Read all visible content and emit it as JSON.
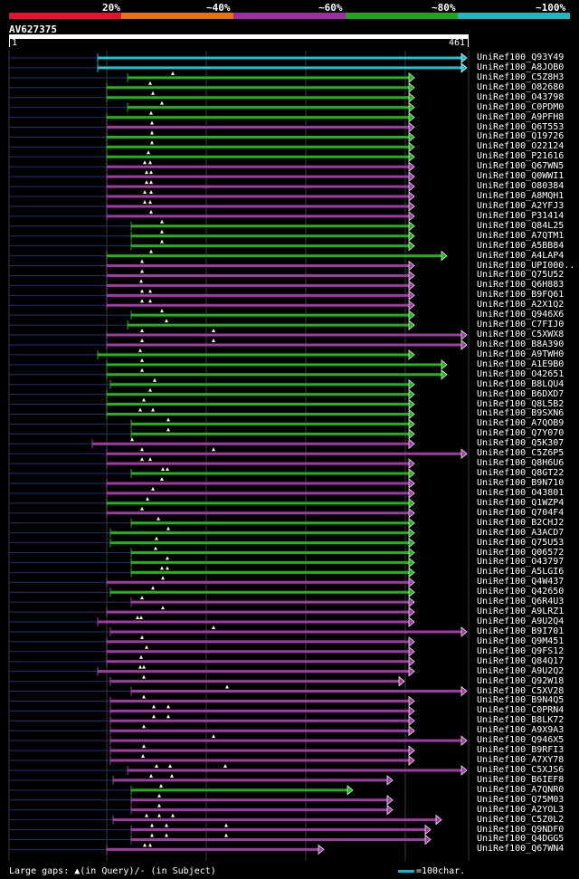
{
  "legend": [
    {
      "label": "20%",
      "color": "#e8112d"
    },
    {
      "label": "~40%",
      "color": "#e87411"
    },
    {
      "label": "~60%",
      "color": "#9b2ea0"
    },
    {
      "label": "~80%",
      "color": "#22a31f"
    },
    {
      "label": "~100%",
      "color": "#1fb8c2"
    }
  ],
  "query": {
    "name": "AV627375",
    "start": "1",
    "end": "461"
  },
  "footer": {
    "left": "Large gaps: ▲(in Query)/- (in Subject)",
    "scale": "=100char."
  },
  "rows": [
    {
      "label": "UniRef100_Q93Y49",
      "color": "cyan",
      "start": 108,
      "end": 516,
      "pre": 10,
      "tri": []
    },
    {
      "label": "UniRef100_A8JOB0",
      "color": "cyan",
      "start": 108,
      "end": 516,
      "pre": 10,
      "tri": []
    },
    {
      "label": "UniRef100_C5Z8H3",
      "color": "green",
      "start": 141,
      "end": 458,
      "pre": 10,
      "tri": [
        191
      ]
    },
    {
      "label": "UniRef100_O82680",
      "color": "green",
      "start": 118,
      "end": 458,
      "pre": 10,
      "tri": [
        166
      ]
    },
    {
      "label": "UniRef100_O43798",
      "color": "green",
      "start": 118,
      "end": 458,
      "pre": 10,
      "tri": [
        169
      ]
    },
    {
      "label": "UniRef100_C0PDM0",
      "color": "green",
      "start": 141,
      "end": 458,
      "pre": 10,
      "tri": [
        179
      ]
    },
    {
      "label": "UniRef100_A9PFH8",
      "color": "green",
      "start": 118,
      "end": 458,
      "pre": 10,
      "tri": [
        167
      ]
    },
    {
      "label": "UniRef100_Q6T553",
      "color": "magenta",
      "start": 118,
      "end": 458,
      "pre": 10,
      "tri": [
        168
      ]
    },
    {
      "label": "UniRef100_Q19726",
      "color": "green",
      "start": 118,
      "end": 458,
      "pre": 10,
      "tri": [
        168
      ]
    },
    {
      "label": "UniRef100_O22124",
      "color": "green",
      "start": 118,
      "end": 458,
      "pre": 10,
      "tri": [
        168
      ]
    },
    {
      "label": "UniRef100_P21616",
      "color": "green",
      "start": 118,
      "end": 458,
      "pre": 10,
      "tri": [
        164
      ]
    },
    {
      "label": "UniRef100_Q67WN5",
      "color": "magenta",
      "start": 118,
      "end": 458,
      "pre": 10,
      "tri": [
        160,
        166
      ]
    },
    {
      "label": "UniRef100_Q0WWI1",
      "color": "magenta",
      "start": 118,
      "end": 458,
      "pre": 10,
      "tri": [
        162,
        167
      ]
    },
    {
      "label": "UniRef100_O80384",
      "color": "magenta",
      "start": 118,
      "end": 458,
      "pre": 10,
      "tri": [
        162,
        167
      ]
    },
    {
      "label": "UniRef100_A8MQH1",
      "color": "magenta",
      "start": 118,
      "end": 458,
      "pre": 10,
      "tri": [
        160,
        167
      ]
    },
    {
      "label": "UniRef100_A2YFJ3",
      "color": "magenta",
      "start": 118,
      "end": 458,
      "pre": 10,
      "tri": [
        160,
        166
      ]
    },
    {
      "label": "UniRef100_P31414",
      "color": "magenta",
      "start": 118,
      "end": 458,
      "pre": 10,
      "tri": [
        167
      ]
    },
    {
      "label": "UniRef100_Q84L25",
      "color": "green",
      "start": 145,
      "end": 458,
      "pre": 10,
      "tri": [
        179
      ]
    },
    {
      "label": "UniRef100_A7QTM1",
      "color": "green",
      "start": 145,
      "end": 458,
      "pre": 10,
      "tri": [
        179
      ]
    },
    {
      "label": "UniRef100_A5BB84",
      "color": "green",
      "start": 145,
      "end": 458,
      "pre": 10,
      "tri": [
        179
      ]
    },
    {
      "label": "UniRef100_A4LAP4",
      "color": "green",
      "start": 118,
      "end": 494,
      "pre": 10,
      "tri": [
        167
      ]
    },
    {
      "label": "UniRef100_UPI000..",
      "color": "magenta",
      "start": 118,
      "end": 458,
      "pre": 10,
      "tri": [
        157
      ]
    },
    {
      "label": "UniRef100_Q75U52",
      "color": "magenta",
      "start": 118,
      "end": 458,
      "pre": 10,
      "tri": [
        157
      ]
    },
    {
      "label": "UniRef100_Q6H883",
      "color": "magenta",
      "start": 118,
      "end": 458,
      "pre": 10,
      "tri": [
        156
      ]
    },
    {
      "label": "UniRef100_B9FQ61",
      "color": "magenta",
      "start": 118,
      "end": 458,
      "pre": 10,
      "tri": [
        157,
        166
      ]
    },
    {
      "label": "UniRef100_A2X1Q2",
      "color": "magenta",
      "start": 118,
      "end": 458,
      "pre": 10,
      "tri": [
        157,
        166
      ]
    },
    {
      "label": "UniRef100_Q946X6",
      "color": "green",
      "start": 145,
      "end": 458,
      "pre": 10,
      "tri": [
        179
      ]
    },
    {
      "label": "UniRef100_C7FIJ0",
      "color": "green",
      "start": 141,
      "end": 458,
      "pre": 10,
      "tri": [
        184
      ]
    },
    {
      "label": "UniRef100_C5XWX8",
      "color": "magenta",
      "start": 118,
      "end": 516,
      "pre": 10,
      "tri": [
        157,
        236
      ]
    },
    {
      "label": "UniRef100_B8A390",
      "color": "magenta",
      "start": 118,
      "end": 516,
      "pre": 10,
      "tri": [
        157,
        236
      ]
    },
    {
      "label": "UniRef100_A9TWH0",
      "color": "green",
      "start": 108,
      "end": 458,
      "pre": 10,
      "tri": [
        155
      ]
    },
    {
      "label": "UniRef100_A1E9B0",
      "color": "green",
      "start": 118,
      "end": 494,
      "pre": 10,
      "tri": [
        157
      ]
    },
    {
      "label": "UniRef100_O42651",
      "color": "green",
      "start": 118,
      "end": 494,
      "pre": 10,
      "tri": [
        157
      ]
    },
    {
      "label": "UniRef100_B8LQU4",
      "color": "green",
      "start": 122,
      "end": 458,
      "pre": 10,
      "tri": [
        171
      ]
    },
    {
      "label": "UniRef100_B6DXD7",
      "color": "green",
      "start": 118,
      "end": 458,
      "pre": 10,
      "tri": [
        166
      ]
    },
    {
      "label": "UniRef100_Q8L5B2",
      "color": "green",
      "start": 118,
      "end": 458,
      "pre": 10,
      "tri": [
        159
      ]
    },
    {
      "label": "UniRef100_B9SXN6",
      "color": "green",
      "start": 118,
      "end": 458,
      "pre": 10,
      "tri": [
        155,
        169
      ]
    },
    {
      "label": "UniRef100_A7QOB9",
      "color": "green",
      "start": 145,
      "end": 458,
      "pre": 10,
      "tri": [
        186
      ]
    },
    {
      "label": "UniRef100_Q7Y070",
      "color": "green",
      "start": 145,
      "end": 458,
      "pre": 10,
      "tri": [
        186
      ]
    },
    {
      "label": "UniRef100_Q5K307",
      "color": "magenta",
      "start": 102,
      "end": 458,
      "pre": 10,
      "tri": [
        146
      ]
    },
    {
      "label": "UniRef100_C5Z6P5",
      "color": "magenta",
      "start": 118,
      "end": 516,
      "pre": 10,
      "tri": [
        157,
        236
      ]
    },
    {
      "label": "UniRef100_Q8H6U6",
      "color": "magenta",
      "start": 118,
      "end": 458,
      "pre": 10,
      "tri": [
        157,
        166
      ]
    },
    {
      "label": "UniRef100_Q8GT22",
      "color": "green",
      "start": 145,
      "end": 458,
      "pre": 10,
      "tri": [
        180,
        185
      ]
    },
    {
      "label": "UniRef100_B9N710",
      "color": "magenta",
      "start": 118,
      "end": 458,
      "pre": 10,
      "tri": [
        179
      ]
    },
    {
      "label": "UniRef100_O43801",
      "color": "magenta",
      "start": 118,
      "end": 458,
      "pre": 10,
      "tri": [
        169
      ]
    },
    {
      "label": "UniRef100_Q1WZP4",
      "color": "green",
      "start": 118,
      "end": 458,
      "pre": 10,
      "tri": [
        163
      ]
    },
    {
      "label": "UniRef100_Q704F4",
      "color": "magenta",
      "start": 118,
      "end": 458,
      "pre": 10,
      "tri": [
        157
      ]
    },
    {
      "label": "UniRef100_B2CHJ2",
      "color": "green",
      "start": 145,
      "end": 458,
      "pre": 10,
      "tri": [
        175
      ]
    },
    {
      "label": "UniRef100_A3ACD7",
      "color": "green",
      "start": 122,
      "end": 458,
      "pre": 10,
      "tri": [
        186
      ]
    },
    {
      "label": "UniRef100_Q75U53",
      "color": "green",
      "start": 122,
      "end": 458,
      "pre": 10,
      "tri": [
        173
      ]
    },
    {
      "label": "UniRef100_Q06572",
      "color": "green",
      "start": 145,
      "end": 458,
      "pre": 10,
      "tri": [
        172
      ]
    },
    {
      "label": "UniRef100_O43797",
      "color": "green",
      "start": 145,
      "end": 458,
      "pre": 10,
      "tri": [
        185
      ]
    },
    {
      "label": "UniRef100_A5LGI6",
      "color": "green",
      "start": 145,
      "end": 458,
      "pre": 10,
      "tri": [
        179,
        185
      ]
    },
    {
      "label": "UniRef100_Q4W437",
      "color": "magenta",
      "start": 118,
      "end": 458,
      "pre": 10,
      "tri": [
        180
      ]
    },
    {
      "label": "UniRef100_Q42650",
      "color": "green",
      "start": 122,
      "end": 458,
      "pre": 10,
      "tri": [
        169
      ]
    },
    {
      "label": "UniRef100_Q6R4U3",
      "color": "magenta",
      "start": 145,
      "end": 458,
      "pre": 10,
      "tri": [
        157
      ]
    },
    {
      "label": "UniRef100_A9LRZ1",
      "color": "magenta",
      "start": 118,
      "end": 458,
      "pre": 10,
      "tri": [
        180
      ]
    },
    {
      "label": "UniRef100_A9U2Q4",
      "color": "magenta",
      "start": 108,
      "end": 458,
      "pre": 10,
      "tri": [
        152,
        156
      ]
    },
    {
      "label": "UniRef100_B9I701",
      "color": "magenta",
      "start": 122,
      "end": 516,
      "pre": 10,
      "tri": [
        236
      ]
    },
    {
      "label": "UniRef100_Q9M451",
      "color": "magenta",
      "start": 118,
      "end": 458,
      "pre": 10,
      "tri": [
        157
      ]
    },
    {
      "label": "UniRef100_Q9FS12",
      "color": "magenta",
      "start": 118,
      "end": 458,
      "pre": 10,
      "tri": [
        162
      ]
    },
    {
      "label": "UniRef100_Q84Q17",
      "color": "magenta",
      "start": 118,
      "end": 458,
      "pre": 10,
      "tri": [
        156
      ]
    },
    {
      "label": "UniRef100_A9U2Q2",
      "color": "magenta",
      "start": 108,
      "end": 458,
      "pre": 10,
      "tri": [
        155,
        159
      ]
    },
    {
      "label": "UniRef100_Q92W18",
      "color": "magenta",
      "start": 122,
      "end": 447,
      "pre": 10,
      "tri": [
        159
      ]
    },
    {
      "label": "UniRef100_C5XV28",
      "color": "magenta",
      "start": 145,
      "end": 516,
      "pre": 10,
      "tri": [
        251
      ]
    },
    {
      "label": "UniRef100_B9N4Q5",
      "color": "magenta",
      "start": 122,
      "end": 458,
      "pre": 10,
      "tri": [
        159
      ]
    },
    {
      "label": "UniRef100_C0PRN4",
      "color": "magenta",
      "start": 122,
      "end": 458,
      "pre": 10,
      "tri": [
        170,
        186
      ]
    },
    {
      "label": "UniRef100_B8LK72",
      "color": "magenta",
      "start": 122,
      "end": 458,
      "pre": 10,
      "tri": [
        170,
        186
      ]
    },
    {
      "label": "UniRef100_A9X9A3",
      "color": "magenta",
      "start": 122,
      "end": 458,
      "pre": 10,
      "tri": [
        159
      ]
    },
    {
      "label": "UniRef100_Q946X5",
      "color": "magenta",
      "start": 122,
      "end": 516,
      "pre": 10,
      "tri": [
        236
      ]
    },
    {
      "label": "UniRef100_B9RFI3",
      "color": "magenta",
      "start": 122,
      "end": 458,
      "pre": 10,
      "tri": [
        159
      ]
    },
    {
      "label": "UniRef100_A7XY78",
      "color": "magenta",
      "start": 122,
      "end": 458,
      "pre": 10,
      "tri": [
        158
      ]
    },
    {
      "label": "UniRef100_C5XJS6",
      "color": "magenta",
      "start": 141,
      "end": 516,
      "pre": 10,
      "tri": [
        173,
        188,
        249
      ]
    },
    {
      "label": "UniRef100_B6IEF8",
      "color": "magenta",
      "start": 125,
      "end": 434,
      "pre": 10,
      "tri": [
        167,
        190
      ]
    },
    {
      "label": "UniRef100_A7QNR0",
      "color": "green",
      "start": 145,
      "end": 390,
      "pre": 10,
      "tri": [
        178
      ]
    },
    {
      "label": "UniRef100_Q75M03",
      "color": "magenta",
      "start": 145,
      "end": 434,
      "pre": 10,
      "tri": [
        176
      ]
    },
    {
      "label": "UniRef100_A2YOL3",
      "color": "magenta",
      "start": 145,
      "end": 434,
      "pre": 10,
      "tri": [
        176
      ]
    },
    {
      "label": "UniRef100_C5Z0L2",
      "color": "magenta",
      "start": 125,
      "end": 488,
      "pre": 10,
      "tri": [
        162,
        176,
        191
      ]
    },
    {
      "label": "UniRef100_Q9NDF0",
      "color": "magenta",
      "start": 145,
      "end": 476,
      "pre": 10,
      "tri": [
        168,
        184,
        250
      ]
    },
    {
      "label": "UniRef100_Q4DGG5",
      "color": "magenta",
      "start": 145,
      "end": 476,
      "pre": 10,
      "tri": [
        168,
        184,
        250
      ]
    },
    {
      "label": "UniRef100_Q67WN4",
      "color": "magenta",
      "start": 118,
      "end": 358,
      "pre": 10,
      "tri": [
        160,
        166
      ]
    }
  ]
}
